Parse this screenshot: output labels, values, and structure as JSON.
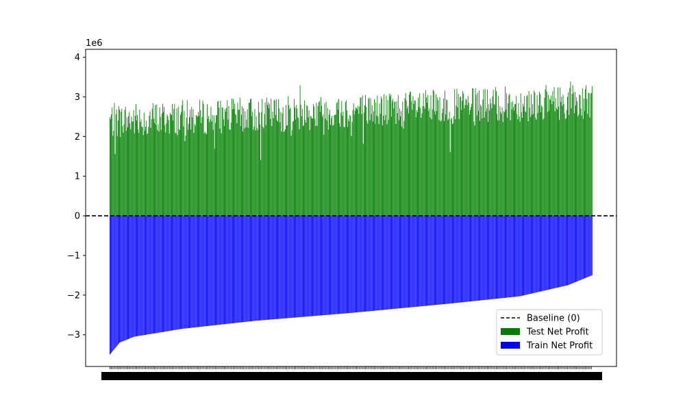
{
  "chart_data": {
    "type": "bar",
    "title": "",
    "xlabel": "",
    "ylabel": "",
    "y_offset_label": "1e6",
    "ylim": [
      -3.8,
      4.2
    ],
    "y_ticks": [
      {
        "value": 4,
        "label": "4"
      },
      {
        "value": 3,
        "label": "3"
      },
      {
        "value": 2,
        "label": "2"
      },
      {
        "value": 1,
        "label": "1"
      },
      {
        "value": 0,
        "label": "0"
      },
      {
        "value": -1,
        "label": "−1"
      },
      {
        "value": -2,
        "label": "−2"
      },
      {
        "value": -3,
        "label": "−3"
      }
    ],
    "x_tick_labels_note": "x tick labels are densely overlapping and illegible",
    "n_categories": 650,
    "baseline": {
      "value": 0,
      "label": "Baseline (0)",
      "style": "dashed",
      "color": "#000000"
    },
    "series": [
      {
        "name": "Test Net Profit",
        "color": "#008000",
        "description": "positive bars, roughly 1.5 to 3.8 (x1e6), noisy, gently rising overall",
        "generator": {
          "start_mean": 2.4,
          "end_mean": 2.9,
          "amplitude": 0.45,
          "min": 1.3,
          "max": 3.82,
          "seed": 7
        }
      },
      {
        "name": "Train Net Profit",
        "color": "#0000ff",
        "description": "negative bars sorted ascending from about -3.5 to -1.5 (x1e6)",
        "first_value": -3.5,
        "last_value": -1.5,
        "knots": [
          {
            "x": 0.0,
            "y": -3.5
          },
          {
            "x": 0.02,
            "y": -3.2
          },
          {
            "x": 0.05,
            "y": -3.05
          },
          {
            "x": 0.15,
            "y": -2.85
          },
          {
            "x": 0.3,
            "y": -2.65
          },
          {
            "x": 0.5,
            "y": -2.45
          },
          {
            "x": 0.7,
            "y": -2.22
          },
          {
            "x": 0.85,
            "y": -2.03
          },
          {
            "x": 0.95,
            "y": -1.75
          },
          {
            "x": 1.0,
            "y": -1.5
          }
        ]
      }
    ],
    "legend": {
      "position": "lower-right",
      "entries": [
        {
          "label": "Baseline (0)",
          "kind": "line-dashed",
          "color": "#000000"
        },
        {
          "label": "Test Net Profit",
          "kind": "patch",
          "color": "#008000"
        },
        {
          "label": "Train Net Profit",
          "kind": "patch",
          "color": "#0000ff"
        }
      ]
    }
  }
}
